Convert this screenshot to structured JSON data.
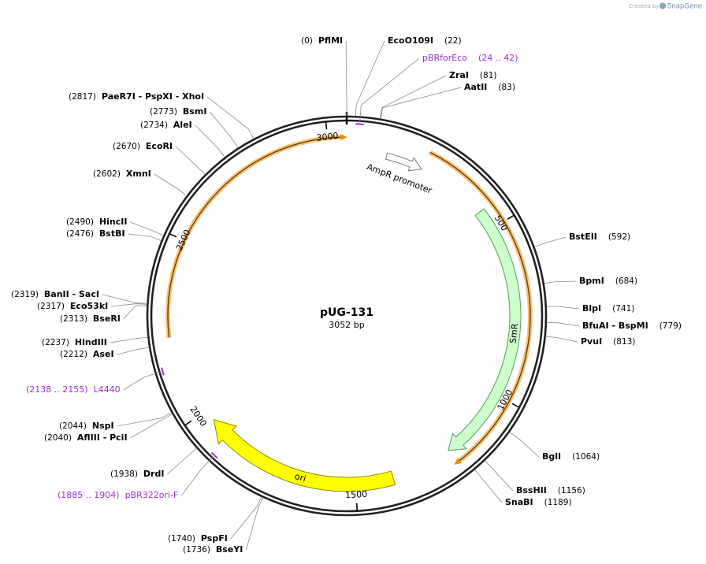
{
  "header": {
    "created_by": "Created by",
    "brand": "SnapGene"
  },
  "plasmid": {
    "name": "pUG-131",
    "size": "3052 bp"
  },
  "ticks": [
    500,
    1000,
    1500,
    2000,
    2500,
    3000
  ],
  "sites": [
    {
      "position": "(0)",
      "enzymes": "PflMI"
    },
    {
      "position": "(22)",
      "enzymes": "EcoO109I"
    },
    {
      "position": "(81)",
      "enzymes": "ZraI"
    },
    {
      "position": "(83)",
      "enzymes": "AatII"
    },
    {
      "position": "(592)",
      "enzymes": "BstEII"
    },
    {
      "position": "(684)",
      "enzymes": "BpmI"
    },
    {
      "position": "(741)",
      "enzymes": "BlpI"
    },
    {
      "position": "(779)",
      "enzymes": "BfuAI - BspMI"
    },
    {
      "position": "(813)",
      "enzymes": "PvuI"
    },
    {
      "position": "(1064)",
      "enzymes": "BglI"
    },
    {
      "position": "(1156)",
      "enzymes": "BssHII"
    },
    {
      "position": "(1189)",
      "enzymes": "SnaBI"
    },
    {
      "position": "(1740)",
      "enzymes": "PspFI"
    },
    {
      "position": "(1736)",
      "enzymes": "BseYI"
    },
    {
      "position": "(1938)",
      "enzymes": "DrdI"
    },
    {
      "position": "(2040)",
      "enzymes": "AflIII - PciI"
    },
    {
      "position": "(2044)",
      "enzymes": "NspI"
    },
    {
      "position": "(2212)",
      "enzymes": "AseI"
    },
    {
      "position": "(2237)",
      "enzymes": "HindIII"
    },
    {
      "position": "(2313)",
      "enzymes": "BseRI"
    },
    {
      "position": "(2317)",
      "enzymes": "Eco53kI"
    },
    {
      "position": "(2319)",
      "enzymes": "BanII - SacI"
    },
    {
      "position": "(2476)",
      "enzymes": "BstBI"
    },
    {
      "position": "(2490)",
      "enzymes": "HincII"
    },
    {
      "position": "(2602)",
      "enzymes": "XmnI"
    },
    {
      "position": "(2670)",
      "enzymes": "EcoRI"
    },
    {
      "position": "(2734)",
      "enzymes": "AleI"
    },
    {
      "position": "(2773)",
      "enzymes": "BsmI"
    },
    {
      "position": "(2817)",
      "enzymes": "PaeR7I - PspXI - XhoI"
    }
  ],
  "primers": [
    {
      "name": "pBRforEco",
      "range": "(24 .. 42)"
    },
    {
      "name": "pBR322ori-F",
      "range": "(1885 .. 1904)"
    },
    {
      "name": "L4440",
      "range": "(2138 .. 2155)"
    }
  ],
  "features": [
    {
      "name": "AmpR promoter"
    },
    {
      "name": "SmR"
    },
    {
      "name": "ori"
    }
  ]
}
